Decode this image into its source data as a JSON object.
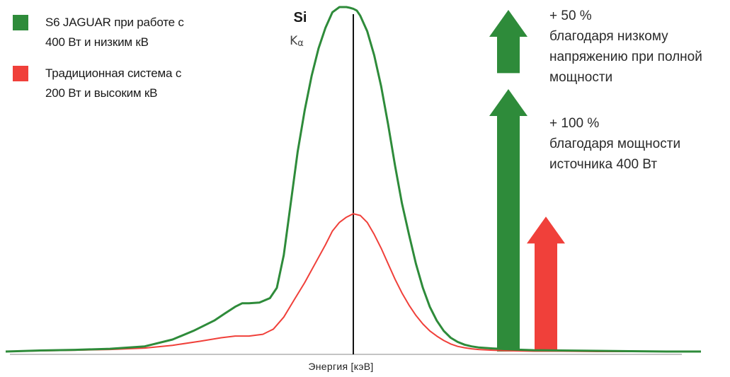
{
  "legend": [
    {
      "label": "S6 JAGUAR при работе с\n400 Вт и низким кВ",
      "color": "#2e8b3a"
    },
    {
      "label": "Традиционная система с\n200 Вт и высоким кВ",
      "color": "#f0403a"
    }
  ],
  "peak": {
    "element": "Si",
    "line": "K",
    "line_sub": "α"
  },
  "annotations": [
    {
      "text": "+ 50 %\nблагодаря низкому\nнапряжению при полной\nмощности"
    },
    {
      "text": "+ 100 %\nблагодаря мощности\nисточника 400 Вт"
    }
  ],
  "chart_data": {
    "type": "line",
    "title": "",
    "xlabel": "Энергия [кэВ]",
    "ylabel": "",
    "xlim": [
      0,
      100
    ],
    "ylim": [
      0,
      100
    ],
    "grid": false,
    "legend_position": "top-left",
    "peak_x": 50,
    "series": [
      {
        "name": "S6 JAGUAR при работе с 400 Вт и низким кВ",
        "color": "#2e8b3a",
        "x": [
          0,
          5,
          10,
          15,
          20,
          24,
          27,
          30,
          31.5,
          33,
          34,
          35,
          36.5,
          38,
          39,
          40,
          41,
          42,
          43,
          44,
          45,
          46,
          47,
          48,
          49,
          49.5,
          50,
          50.5,
          51,
          52,
          53,
          54,
          55,
          56,
          57,
          58,
          59,
          60,
          61,
          62,
          63,
          64,
          65,
          66,
          67,
          68,
          70,
          73,
          76,
          80,
          85,
          90,
          95,
          100
        ],
        "y": [
          0,
          0.3,
          0.5,
          0.8,
          1.5,
          3.5,
          6,
          9,
          11,
          13,
          14,
          14,
          14.2,
          15.5,
          18.5,
          28,
          43,
          58,
          70,
          80,
          88,
          94,
          98.5,
          100,
          100,
          99.8,
          99.5,
          99,
          97.5,
          93,
          86,
          77,
          66,
          54,
          43,
          34,
          25.5,
          18.5,
          13,
          9,
          6,
          4,
          2.8,
          2,
          1.5,
          1.2,
          0.9,
          0.6,
          0.4,
          0.3,
          0.2,
          0.1,
          0,
          0
        ]
      },
      {
        "name": "Традиционная система с 200 Вт и высоким кВ",
        "color": "#f0403a",
        "x": [
          0,
          5,
          10,
          15,
          20,
          24,
          28,
          31,
          33,
          35,
          37,
          38.5,
          40,
          41.5,
          43,
          44.5,
          46,
          47,
          48,
          49,
          50,
          51,
          52,
          53,
          54,
          55,
          56,
          57,
          58,
          59,
          60,
          61,
          62,
          63,
          64,
          65,
          66,
          67,
          68,
          70,
          73,
          76,
          80,
          85,
          90,
          95,
          100
        ],
        "y": [
          0,
          0.2,
          0.4,
          0.6,
          1,
          1.8,
          3,
          4,
          4.5,
          4.5,
          5,
          6.5,
          10,
          15,
          20,
          25.5,
          31,
          35,
          37.5,
          39,
          40,
          39.5,
          37.5,
          34,
          30,
          25.5,
          21,
          17,
          13.5,
          10.5,
          8,
          6,
          4.5,
          3.2,
          2.2,
          1.5,
          1.1,
          0.8,
          0.6,
          0.4,
          0.2,
          0.1,
          0.1,
          0,
          0,
          0,
          0
        ]
      }
    ],
    "arrows": [
      {
        "name": "+ 50 %",
        "color": "#2e8b3a",
        "from": 80,
        "to": 100
      },
      {
        "name": "+ 100 %",
        "color": "#2e8b3a",
        "from": 0,
        "to": 77
      },
      {
        "name": "",
        "color": "#f0403a",
        "from": 0,
        "to": 40
      }
    ]
  }
}
